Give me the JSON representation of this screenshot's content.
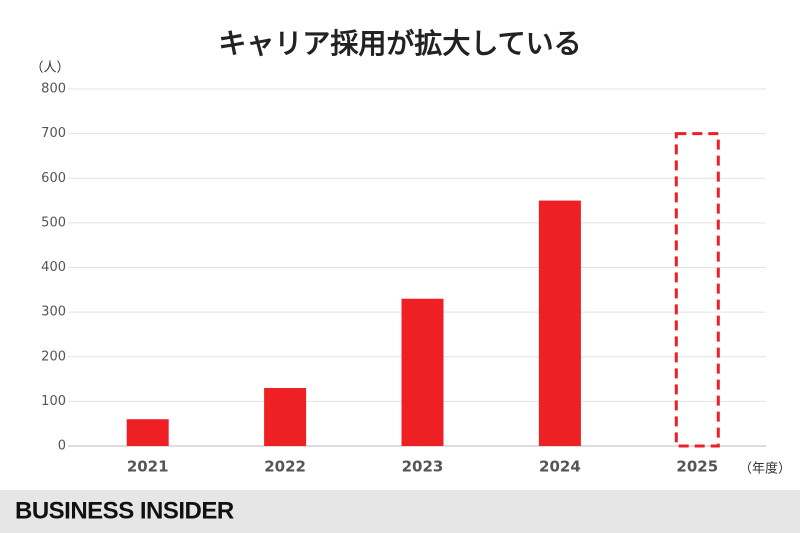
{
  "chart_data": {
    "type": "bar",
    "title": "キャリア採用が拡大している",
    "y_unit": "（人）",
    "x_unit": "（年度）",
    "categories": [
      "2021",
      "2022",
      "2023",
      "2024",
      "2025"
    ],
    "values": [
      60,
      130,
      330,
      550,
      700
    ],
    "styles": [
      "solid",
      "solid",
      "solid",
      "solid",
      "dashed"
    ],
    "color": "#ee2024",
    "ylim": [
      0,
      800
    ],
    "yticks": [
      0,
      100,
      200,
      300,
      400,
      500,
      600,
      700,
      800
    ],
    "grid": true
  },
  "footer": {
    "brand": "BUSINESS INSIDER"
  }
}
